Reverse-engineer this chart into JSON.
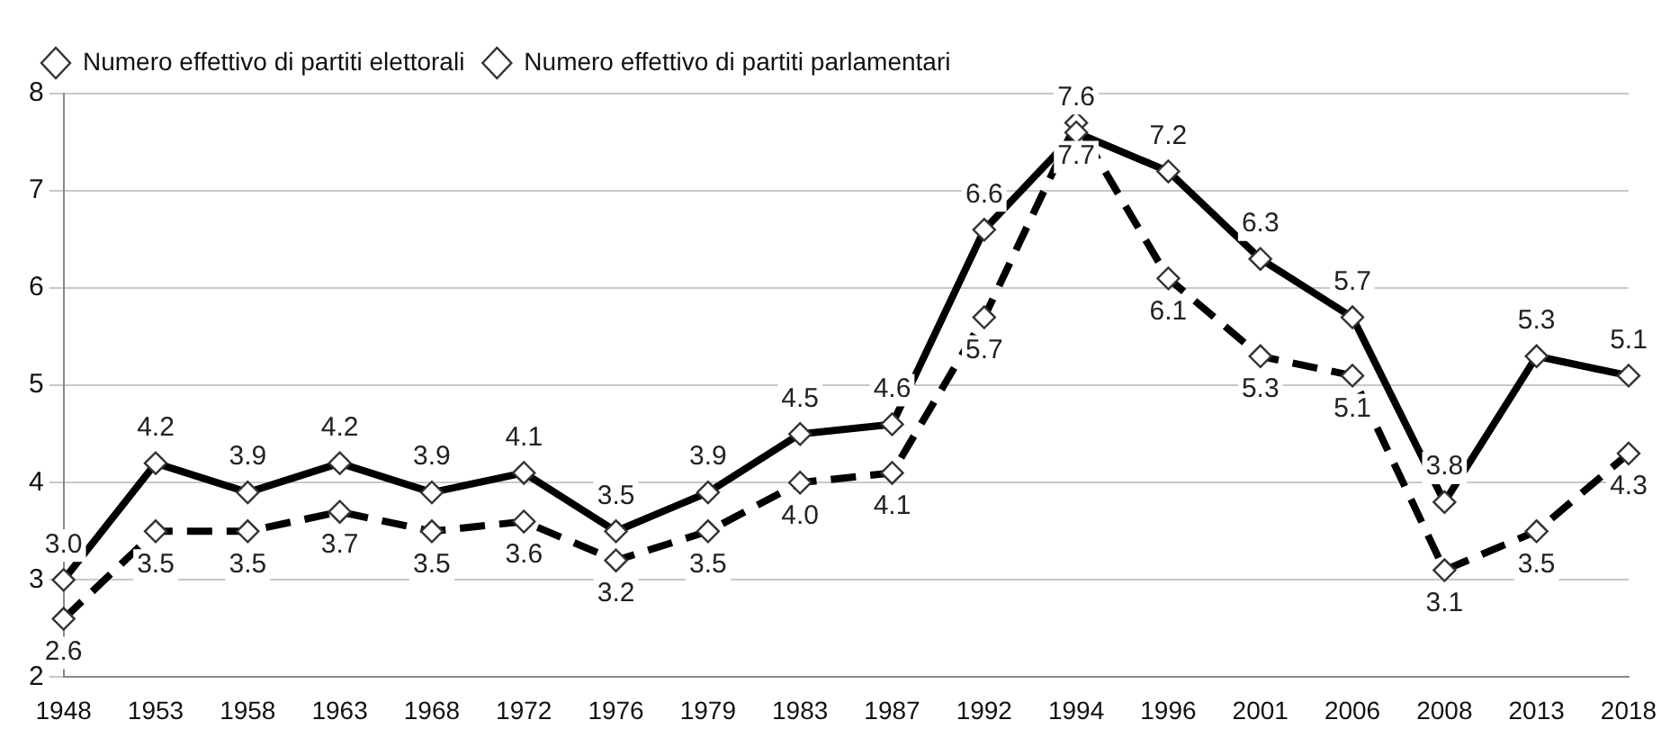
{
  "chart_data": {
    "type": "line",
    "categories": [
      "1948",
      "1953",
      "1958",
      "1963",
      "1968",
      "1972",
      "1976",
      "1979",
      "1983",
      "1987",
      "1992",
      "1994",
      "1996",
      "2001",
      "2006",
      "2008",
      "2013",
      "2018"
    ],
    "series": [
      {
        "name": "Numero effettivo di partiti elettorali",
        "color": "#000000",
        "line_style": "solid",
        "values": [
          3.0,
          4.2,
          3.9,
          4.2,
          3.9,
          4.1,
          3.5,
          3.9,
          4.5,
          4.6,
          6.6,
          7.6,
          7.2,
          6.3,
          5.7,
          3.8,
          5.3,
          5.1
        ],
        "value_labels": [
          "3.0",
          "4.2",
          "3.9",
          "4.2",
          "3.9",
          "4.1",
          "3.5",
          "3.9",
          "4.5",
          "4.6",
          "6.6",
          "7.6",
          "7.2",
          "6.3",
          "5.7",
          "3.8",
          "5.3",
          "5.1"
        ]
      },
      {
        "name": "Numero effettivo di partiti parlamentari",
        "color": "#000000",
        "line_style": "dashed",
        "values": [
          2.6,
          3.5,
          3.5,
          3.7,
          3.5,
          3.6,
          3.2,
          3.5,
          4.0,
          4.1,
          5.7,
          7.7,
          6.1,
          5.3,
          5.1,
          3.1,
          3.5,
          4.3
        ],
        "value_labels": [
          "2.6",
          "3.5",
          "3.5",
          "3.7",
          "3.5",
          "3.6",
          "3.2",
          "3.5",
          "4.0",
          "4.1",
          "5.7",
          "7.7",
          "6.1",
          "5.3",
          "5.1",
          "3.1",
          "3.5",
          "4.3"
        ]
      }
    ],
    "ylim": [
      2,
      8
    ],
    "yticks": [
      2,
      3,
      4,
      5,
      6,
      7,
      8
    ],
    "grid": "y",
    "legend": "top left",
    "marker": "diamond"
  }
}
